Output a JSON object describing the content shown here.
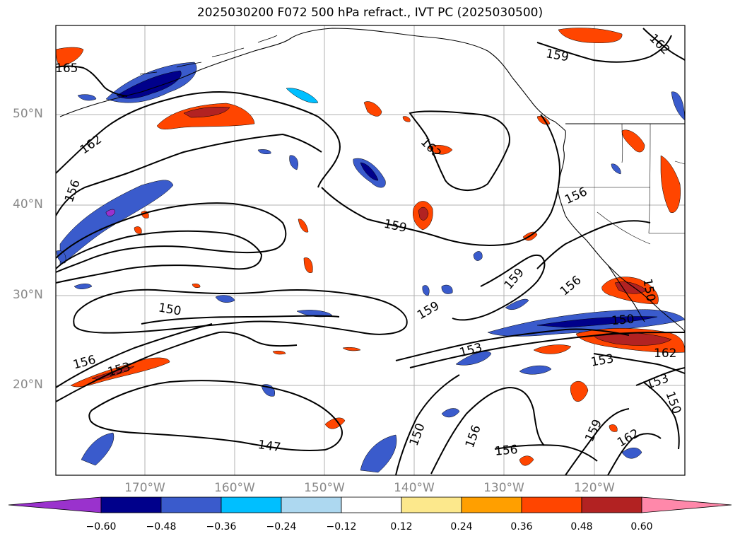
{
  "title": "2025030200 F072 500 hPa refract., IVT PC (2025030500)",
  "axes": {
    "lat_labels": [
      "50°N",
      "40°N",
      "30°N",
      "20°N"
    ],
    "lon_labels": [
      "170°W",
      "160°W",
      "150°W",
      "140°W",
      "130°W",
      "120°W"
    ]
  },
  "contour_labels": [
    "165",
    "162",
    "162",
    "156",
    "150",
    "156",
    "153",
    "147",
    "162",
    "159",
    "159",
    "156",
    "159",
    "153",
    "150",
    "156",
    "156",
    "159",
    "162",
    "150",
    "153",
    "153",
    "150",
    "156",
    "150",
    "159",
    "162"
  ],
  "colorbar": {
    "tick_labels": [
      "−0.60",
      "−0.48",
      "−0.36",
      "−0.24",
      "−0.12",
      "0.12",
      "0.24",
      "0.36",
      "0.48",
      "0.60"
    ],
    "colors": [
      "#9a32cd",
      "#00008b",
      "#3a5bcc",
      "#00bfff",
      "#add8f0",
      "#ffffff",
      "#fce88c",
      "#ff9f00",
      "#ff4500",
      "#b22222",
      "#ff88aa"
    ]
  },
  "colors": {
    "contour": "#000000",
    "coastline": "#000000",
    "grid": "#b0b0b0",
    "positive_high": "#b22222",
    "positive_mid": "#ff4500",
    "negative_mid": "#3a5bcc",
    "negative_high": "#00008b"
  }
}
